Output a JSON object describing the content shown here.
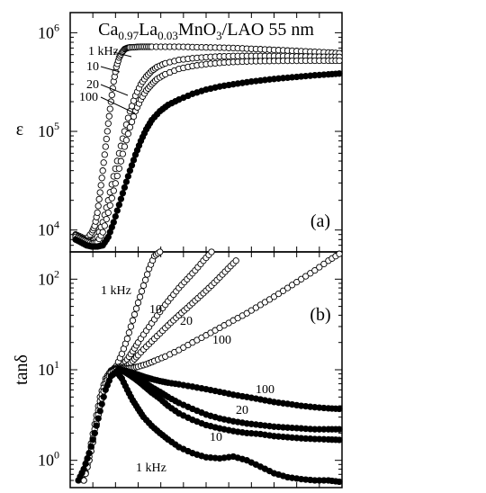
{
  "chart_data": [
    {
      "panel": "(a)",
      "type": "scatter",
      "title": "Ca0.97La0.03MnO3/LAO 55 nm",
      "title_parts": {
        "base1": "Ca",
        "sub1": "0.97",
        "base2": "La",
        "sub2": "0.03",
        "base3": "MnO",
        "sub3": "3",
        "rest": "/LAO 55 nm"
      },
      "panel_label": "(a)",
      "ylabel": "ε",
      "yscale": "log",
      "ylim": [
        6000,
        1600000
      ],
      "xlim": [
        0,
        100
      ],
      "x_ticks_shown": false,
      "y_tick_labels": [
        {
          "v": 10000,
          "base": "10",
          "exp": "4"
        },
        {
          "v": 100000,
          "base": "10",
          "exp": "5"
        },
        {
          "v": 1000000,
          "base": "10",
          "exp": "6"
        }
      ],
      "series_labels": [
        "1 kHz",
        "10",
        "20",
        "100"
      ],
      "series": [
        {
          "name": "1 kHz",
          "marker": "open",
          "x": [
            2,
            4,
            6,
            8,
            9,
            10,
            11,
            12,
            13,
            14,
            15,
            16,
            17,
            18,
            19,
            20,
            21,
            22,
            24,
            26,
            28,
            30,
            35,
            40,
            45,
            50,
            55,
            60,
            65,
            70,
            75,
            80,
            85,
            90,
            95,
            99
          ],
          "y": [
            9000,
            8500,
            8000,
            9500,
            11000,
            15000,
            24000,
            40000,
            70000,
            120000,
            200000,
            320000,
            450000,
            560000,
            630000,
            680000,
            700000,
            710000,
            715000,
            720000,
            720000,
            720000,
            720000,
            720000,
            715000,
            710000,
            705000,
            700000,
            690000,
            680000,
            670000,
            660000,
            650000,
            640000,
            630000,
            620000
          ]
        },
        {
          "name": "10",
          "marker": "open",
          "x": [
            2,
            4,
            6,
            8,
            10,
            12,
            14,
            16,
            18,
            20,
            22,
            24,
            26,
            28,
            30,
            32,
            35,
            40,
            45,
            50,
            55,
            60,
            65,
            70,
            75,
            80,
            85,
            90,
            95,
            99
          ],
          "y": [
            8800,
            8200,
            7800,
            7600,
            8500,
            12000,
            20000,
            35000,
            60000,
            100000,
            160000,
            230000,
            300000,
            360000,
            410000,
            450000,
            490000,
            530000,
            550000,
            565000,
            575000,
            580000,
            582000,
            582000,
            580000,
            578000,
            575000,
            572000,
            570000,
            568000
          ]
        },
        {
          "name": "20",
          "marker": "open",
          "x": [
            2,
            4,
            6,
            8,
            10,
            12,
            14,
            16,
            18,
            20,
            22,
            24,
            26,
            28,
            30,
            32,
            35,
            40,
            45,
            50,
            55,
            60,
            65,
            70,
            75,
            80,
            85,
            90,
            95,
            99
          ],
          "y": [
            8500,
            8000,
            7600,
            7300,
            7500,
            9500,
            15000,
            25000,
            42000,
            70000,
            110000,
            160000,
            210000,
            260000,
            300000,
            340000,
            380000,
            430000,
            460000,
            480000,
            495000,
            505000,
            512000,
            516000,
            518000,
            519000,
            520000,
            520000,
            520000,
            520000
          ]
        },
        {
          "name": "100",
          "marker": "filled",
          "x": [
            2,
            4,
            6,
            8,
            10,
            12,
            14,
            16,
            18,
            20,
            22,
            24,
            26,
            28,
            30,
            33,
            36,
            40,
            45,
            50,
            55,
            60,
            65,
            70,
            75,
            80,
            85,
            90,
            95,
            99
          ],
          "y": [
            8000,
            7500,
            7000,
            6800,
            6800,
            7000,
            8500,
            12000,
            18000,
            27000,
            40000,
            58000,
            80000,
            105000,
            130000,
            160000,
            185000,
            210000,
            240000,
            265000,
            285000,
            300000,
            315000,
            328000,
            340000,
            350000,
            360000,
            370000,
            378000,
            385000
          ]
        }
      ]
    },
    {
      "panel": "(b)",
      "type": "scatter",
      "panel_label": "(b)",
      "ylabel": "tanδ",
      "yscale": "log",
      "ylim": [
        0.5,
        200
      ],
      "xlim": [
        0,
        100
      ],
      "x_ticks_shown": false,
      "y_tick_labels": [
        {
          "v": 1,
          "base": "10",
          "exp": "0"
        },
        {
          "v": 10,
          "base": "10",
          "exp": "1"
        },
        {
          "v": 100,
          "base": "10",
          "exp": "2"
        }
      ],
      "series_labels_upper": [
        "1 kHz",
        "10",
        "20",
        "100"
      ],
      "series_labels_lower": [
        "100",
        "20",
        "10",
        "1 kHz"
      ],
      "series": [
        {
          "name": "1 kHz",
          "marker": "open",
          "x": [
            5,
            7,
            9,
            11,
            13,
            15,
            17,
            19,
            21,
            23,
            25,
            27,
            29,
            31,
            33
          ],
          "y": [
            0.6,
            1.0,
            2.0,
            4.0,
            7.0,
            9.5,
            11,
            15,
            22,
            35,
            55,
            85,
            130,
            180,
            200
          ]
        },
        {
          "name": "10",
          "marker": "open",
          "x": [
            5,
            7,
            9,
            11,
            13,
            15,
            17,
            19,
            21,
            23,
            25,
            28,
            31,
            34,
            37,
            40,
            43,
            46,
            49,
            52
          ],
          "y": [
            0.7,
            1.2,
            2.5,
            5.0,
            8.0,
            9.8,
            10.5,
            11,
            13,
            16,
            20,
            27,
            36,
            48,
            62,
            80,
            100,
            125,
            160,
            200
          ]
        },
        {
          "name": "20",
          "marker": "open",
          "x": [
            5,
            7,
            9,
            11,
            13,
            15,
            17,
            19,
            21,
            23,
            25,
            28,
            31,
            34,
            37,
            40,
            43,
            46,
            49,
            52,
            55,
            58,
            61
          ],
          "y": [
            0.6,
            1.1,
            2.2,
            4.5,
            7.5,
            9.5,
            10.2,
            10.5,
            11,
            12.5,
            14.5,
            18,
            22,
            27,
            33,
            40,
            48,
            58,
            70,
            85,
            105,
            130,
            160
          ]
        },
        {
          "name": "100",
          "marker": "open",
          "x": [
            5,
            7,
            9,
            11,
            13,
            15,
            17,
            19,
            21,
            23,
            25,
            28,
            31,
            35,
            40,
            45,
            50,
            55,
            60,
            65,
            70,
            75,
            80,
            85,
            90,
            95,
            99
          ],
          "y": [
            0.6,
            1.0,
            2.0,
            4.0,
            7.0,
            9.3,
            10.0,
            10.2,
            10.3,
            10.5,
            10.8,
            11.5,
            12.5,
            14,
            16.5,
            20,
            24,
            29,
            35,
            42,
            52,
            64,
            80,
            100,
            125,
            160,
            190
          ]
        },
        {
          "name": "100",
          "marker": "filled",
          "x": [
            18,
            20,
            22,
            24,
            26,
            28,
            30,
            33,
            36,
            40,
            45,
            50,
            55,
            60,
            65,
            70,
            75,
            80,
            85,
            90,
            95,
            99
          ],
          "y": [
            10,
            9.8,
            9.4,
            9.0,
            8.6,
            8.2,
            7.9,
            7.5,
            7.2,
            6.9,
            6.5,
            6.1,
            5.7,
            5.3,
            5.0,
            4.7,
            4.4,
            4.2,
            4.0,
            3.85,
            3.75,
            3.7
          ]
        },
        {
          "name": "20",
          "marker": "filled",
          "x": [
            18,
            20,
            22,
            24,
            26,
            28,
            30,
            33,
            36,
            40,
            45,
            50,
            55,
            60,
            65,
            70,
            75,
            80,
            85,
            90,
            95,
            99
          ],
          "y": [
            10,
            9.6,
            9.0,
            8.3,
            7.6,
            7.0,
            6.4,
            5.7,
            5.0,
            4.3,
            3.7,
            3.2,
            2.9,
            2.7,
            2.55,
            2.45,
            2.35,
            2.3,
            2.25,
            2.2,
            2.2,
            2.2
          ]
        },
        {
          "name": "10",
          "marker": "filled",
          "x": [
            18,
            20,
            22,
            24,
            26,
            28,
            30,
            33,
            36,
            40,
            45,
            50,
            55,
            60,
            65,
            70,
            75,
            80,
            85,
            90,
            95,
            99
          ],
          "y": [
            10,
            9.5,
            8.7,
            7.9,
            7.1,
            6.3,
            5.6,
            4.8,
            4.0,
            3.3,
            2.8,
            2.45,
            2.25,
            2.1,
            2.0,
            1.95,
            1.85,
            1.8,
            1.75,
            1.72,
            1.7,
            1.68
          ]
        },
        {
          "name": "1 kHz",
          "marker": "filled",
          "x": [
            3,
            5,
            7,
            9,
            11,
            13,
            15,
            17,
            19,
            21,
            23,
            25,
            27,
            30,
            33,
            36,
            40,
            45,
            50,
            55,
            60,
            65,
            70,
            75,
            80,
            85,
            90,
            95,
            99
          ],
          "y": [
            0.6,
            0.8,
            1.2,
            2.0,
            3.5,
            6.0,
            8.5,
            9.5,
            8.0,
            6.0,
            4.6,
            3.7,
            3.0,
            2.4,
            2.0,
            1.7,
            1.4,
            1.2,
            1.08,
            1.05,
            1.1,
            1.0,
            0.85,
            0.72,
            0.65,
            0.62,
            0.6,
            0.6,
            0.58
          ]
        }
      ]
    }
  ]
}
